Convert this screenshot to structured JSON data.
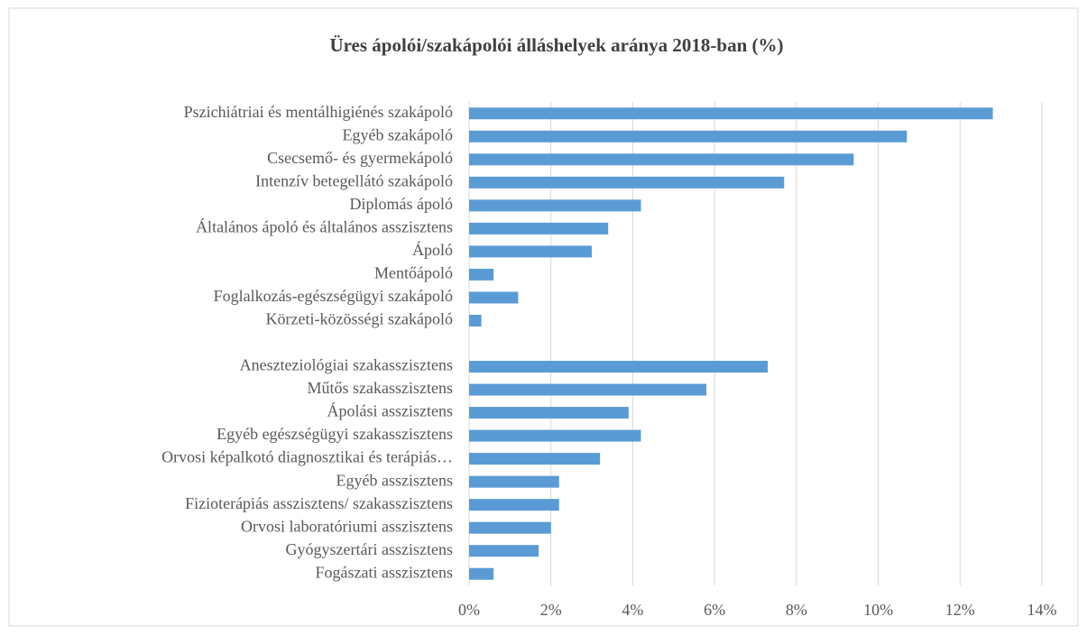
{
  "chart_data": {
    "type": "barh",
    "title": "Üres ápolói/szakápolói álláshelyek aránya 2018-ban (%)",
    "categories": [
      "Pszichiátriai és mentálhigiénés szakápoló",
      "Egyéb szakápoló",
      "Csecsemő- és gyermekápoló",
      "Intenzív betegellátó szakápoló",
      "Diplomás ápoló",
      "Általános ápoló és általános asszisztens",
      "Ápoló",
      "Mentőápoló",
      "Foglalkozás-egészségügyi szakápoló",
      "Körzeti-közösségi szakápoló",
      null,
      "Aneszteziológiai szakasszisztens",
      "Műtős szakasszisztens",
      "Ápolási asszisztens",
      "Egyéb egészségügyi szakasszisztens",
      "Orvosi képalkotó diagnosztikai és terápiás…",
      "Egyéb asszisztens",
      "Fizioterápiás asszisztens/ szakasszisztens",
      "Orvosi laboratóriumi asszisztens",
      "Gyógyszertári asszisztens",
      "Fogászati asszisztens"
    ],
    "values": [
      12.8,
      10.7,
      9.4,
      7.7,
      4.2,
      3.4,
      3.0,
      0.6,
      1.2,
      0.3,
      null,
      7.3,
      5.8,
      3.9,
      4.2,
      3.2,
      2.2,
      2.2,
      2.0,
      1.7,
      0.6
    ],
    "color": "#5b9bd5",
    "xlim": [
      0,
      14
    ],
    "xticks": [
      {
        "value": 0,
        "label": "0%"
      },
      {
        "value": 2,
        "label": "2%"
      },
      {
        "value": 4,
        "label": "4%"
      },
      {
        "value": 6,
        "label": "6%"
      },
      {
        "value": 8,
        "label": "8%"
      },
      {
        "value": 10,
        "label": "10%"
      },
      {
        "value": 12,
        "label": "12%"
      },
      {
        "value": 14,
        "label": "14%"
      }
    ],
    "grid": true
  }
}
